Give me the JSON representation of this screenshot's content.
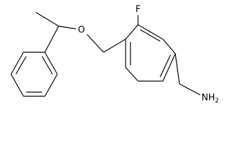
{
  "atoms": [
    {
      "label": "F"
    },
    {
      "label": "O"
    },
    {
      "label": "NH",
      "subscript": "2"
    }
  ]
}
